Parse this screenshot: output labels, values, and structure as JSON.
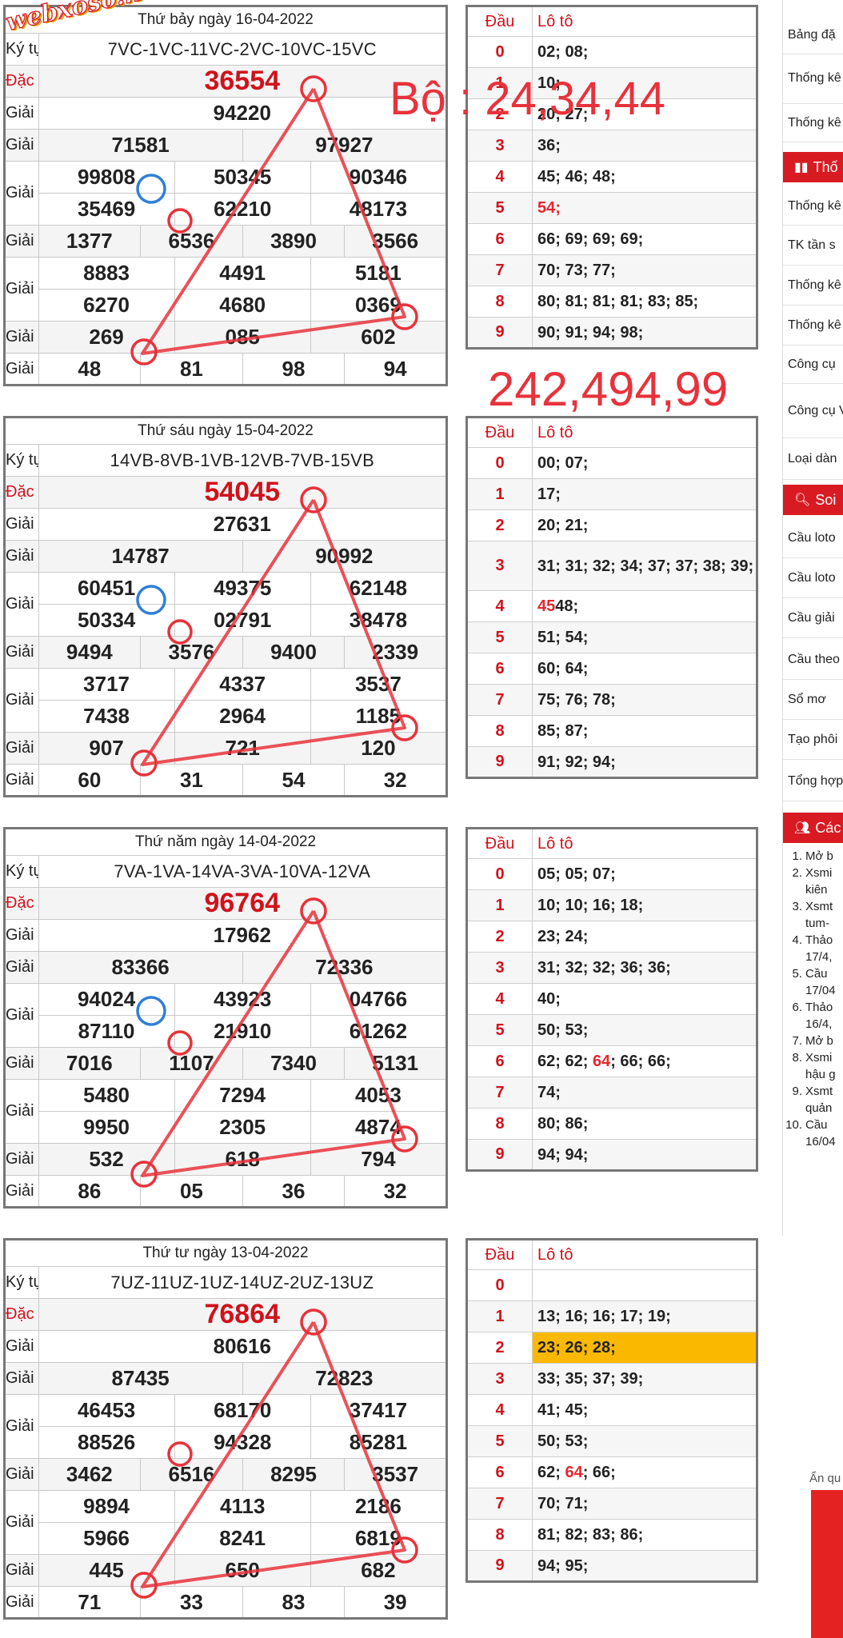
{
  "watermark": "webxoso.net",
  "annotations": {
    "bo": "Bộ : 24,34,44",
    "numbers": "242,494,99"
  },
  "labels": {
    "kytu": "Ký tự",
    "dacbiet": "Đặc biệt",
    "nhat": "Giải nhất",
    "nhi": "Giải nhì",
    "ba": "Giải ba",
    "tu": "Giải tư",
    "nam": "Giải năm",
    "sau": "Giải sáu",
    "bay": "Giải bảy",
    "dau": "Đầu",
    "loto": "Lô tô"
  },
  "days": [
    {
      "title": "Thứ bảy ngày 16-04-2022",
      "kytu": "7VC-1VC-11VC-2VC-10VC-15VC",
      "db": "36554",
      "nhat": "94220",
      "nhi": [
        "71581",
        "97927"
      ],
      "ba": [
        "99808",
        "50345",
        "90346",
        "35469",
        "62210",
        "48173"
      ],
      "tu": [
        "1377",
        "6536",
        "3890",
        "3566"
      ],
      "nam": [
        "8883",
        "4491",
        "5181",
        "6270",
        "4680",
        "0369"
      ],
      "sau": [
        "269",
        "085",
        "602"
      ],
      "bay": [
        "48",
        "81",
        "98",
        "94"
      ],
      "loto": [
        {
          "d": "0",
          "v": "02; 08;"
        },
        {
          "d": "1",
          "v": "10;"
        },
        {
          "d": "2",
          "v": "20; 27;"
        },
        {
          "d": "3",
          "v": "36;"
        },
        {
          "d": "4",
          "v": "45; 46; 48;"
        },
        {
          "d": "5",
          "v": "54;",
          "red": true
        },
        {
          "d": "6",
          "v": "66; 69; 69; 69;"
        },
        {
          "d": "7",
          "v": "70; 73; 77;"
        },
        {
          "d": "8",
          "v": "80; 81; 81; 81; 83; 85;"
        },
        {
          "d": "9",
          "v": "90; 91; 94; 98;"
        }
      ]
    },
    {
      "title": "Thứ sáu ngày 15-04-2022",
      "kytu": "14VB-8VB-1VB-12VB-7VB-15VB",
      "db": "54045",
      "nhat": "27631",
      "nhi": [
        "14787",
        "90992"
      ],
      "ba": [
        "60451",
        "49375",
        "62148",
        "50334",
        "02791",
        "38478"
      ],
      "tu": [
        "9494",
        "3576",
        "9400",
        "2339"
      ],
      "nam": [
        "3717",
        "4337",
        "3537",
        "7438",
        "2964",
        "1185"
      ],
      "sau": [
        "907",
        "721",
        "120"
      ],
      "bay": [
        "60",
        "31",
        "54",
        "32"
      ],
      "loto": [
        {
          "d": "0",
          "v": "00; 07;"
        },
        {
          "d": "1",
          "v": "17;"
        },
        {
          "d": "2",
          "v": "20; 21;"
        },
        {
          "d": "3",
          "v": "31; 31; 32; 34; 37; 37; 38; 39;"
        },
        {
          "d": "4",
          "v": "48;",
          "pre": "45"
        },
        {
          "d": "5",
          "v": "51; 54;"
        },
        {
          "d": "6",
          "v": "60; 64;"
        },
        {
          "d": "7",
          "v": "75; 76; 78;"
        },
        {
          "d": "8",
          "v": "85; 87;"
        },
        {
          "d": "9",
          "v": "91; 92; 94;"
        }
      ]
    },
    {
      "title": "Thứ năm ngày 14-04-2022",
      "kytu": "7VA-1VA-14VA-3VA-10VA-12VA",
      "db": "96764",
      "nhat": "17962",
      "nhi": [
        "83366",
        "72336"
      ],
      "ba": [
        "94024",
        "43923",
        "04766",
        "87110",
        "21910",
        "61262"
      ],
      "tu": [
        "7016",
        "1107",
        "7340",
        "5131"
      ],
      "nam": [
        "5480",
        "7294",
        "4053",
        "9950",
        "2305",
        "4874"
      ],
      "sau": [
        "532",
        "618",
        "794"
      ],
      "bay": [
        "86",
        "05",
        "36",
        "32"
      ],
      "loto": [
        {
          "d": "0",
          "v": "05; 05; 07;"
        },
        {
          "d": "1",
          "v": "10; 10; 16; 18;"
        },
        {
          "d": "2",
          "v": "23; 24;"
        },
        {
          "d": "3",
          "v": "31; 32; 32; 36; 36;"
        },
        {
          "d": "4",
          "v": "40;"
        },
        {
          "d": "5",
          "v": "50; 53;"
        },
        {
          "d": "6",
          "v": "62; 62; ",
          "mid": "64",
          "post": "; 66; 66;"
        },
        {
          "d": "7",
          "v": "74;"
        },
        {
          "d": "8",
          "v": "80; 86;"
        },
        {
          "d": "9",
          "v": "94; 94;"
        }
      ]
    },
    {
      "title": "Thứ tư ngày 13-04-2022",
      "kytu": "7UZ-11UZ-1UZ-14UZ-2UZ-13UZ",
      "db": "76864",
      "nhat": "80616",
      "nhi": [
        "87435",
        "72823"
      ],
      "ba": [
        "46453",
        "68170",
        "37417",
        "88526",
        "94328",
        "85281"
      ],
      "tu": [
        "3462",
        "6516",
        "8295",
        "3537"
      ],
      "nam": [
        "9894",
        "4113",
        "2186",
        "5966",
        "8241",
        "6819"
      ],
      "sau": [
        "445",
        "650",
        "682"
      ],
      "bay": [
        "71",
        "33",
        "83",
        "39"
      ],
      "loto": [
        {
          "d": "0",
          "v": ""
        },
        {
          "d": "1",
          "v": "13; 16; 16; 17; 19;"
        },
        {
          "d": "2",
          "v": "23; 26; 28;",
          "hl": true
        },
        {
          "d": "3",
          "v": "33; 35; 37; 39;"
        },
        {
          "d": "4",
          "v": "41; 45;"
        },
        {
          "d": "5",
          "v": "50; 53;"
        },
        {
          "d": "6",
          "v": "62; ",
          "mid": "64",
          "post": "; 66;"
        },
        {
          "d": "7",
          "v": "70; 71;"
        },
        {
          "d": "8",
          "v": "81; 82; 83; 86;"
        },
        {
          "d": "9",
          "v": "94; 95;"
        }
      ]
    }
  ],
  "sidebar": {
    "items_top": [
      "Bảng đặ",
      "Thống kê theo Đặc",
      "Thống kê"
    ],
    "head1": "Thố",
    "items_mid": [
      "Thống kê",
      "TK tần s",
      "Thống kê",
      "Thống kê",
      "Công cụ",
      "Công cụ VIP",
      "Loại dàn"
    ],
    "head2": "Soi",
    "items_soi": [
      "Cầu loto",
      "Cầu loto",
      "Cầu giải",
      "Cầu theo",
      "Sổ mơ",
      "Tạo phôi",
      "Tổng hợp"
    ],
    "head3": "Các",
    "list": [
      {
        "n": "1.",
        "t": [
          "Mở b"
        ]
      },
      {
        "n": "2.",
        "t": [
          "Xsmi",
          "kiên"
        ]
      },
      {
        "n": "3.",
        "t": [
          "Xsmt",
          "tum-"
        ]
      },
      {
        "n": "4.",
        "t": [
          "Thảo",
          "17/4,"
        ]
      },
      {
        "n": "5.",
        "t": [
          "Cầu",
          "17/04"
        ]
      },
      {
        "n": "6.",
        "t": [
          "Thảo",
          "16/4,"
        ]
      },
      {
        "n": "7.",
        "t": [
          "Mở b"
        ]
      },
      {
        "n": "8.",
        "t": [
          "Xsmi",
          "hậu g"
        ]
      },
      {
        "n": "9.",
        "t": [
          "Xsmt",
          "quản"
        ]
      },
      {
        "n": "10.",
        "t": [
          "Cầu",
          "16/04"
        ]
      }
    ],
    "bottom_label": "Ẩn qu"
  },
  "colors": {
    "accent": "#d81b22",
    "highlight": "#fbb800",
    "annotation": "#e8323b",
    "circle_blue": "#2f7fd8"
  }
}
